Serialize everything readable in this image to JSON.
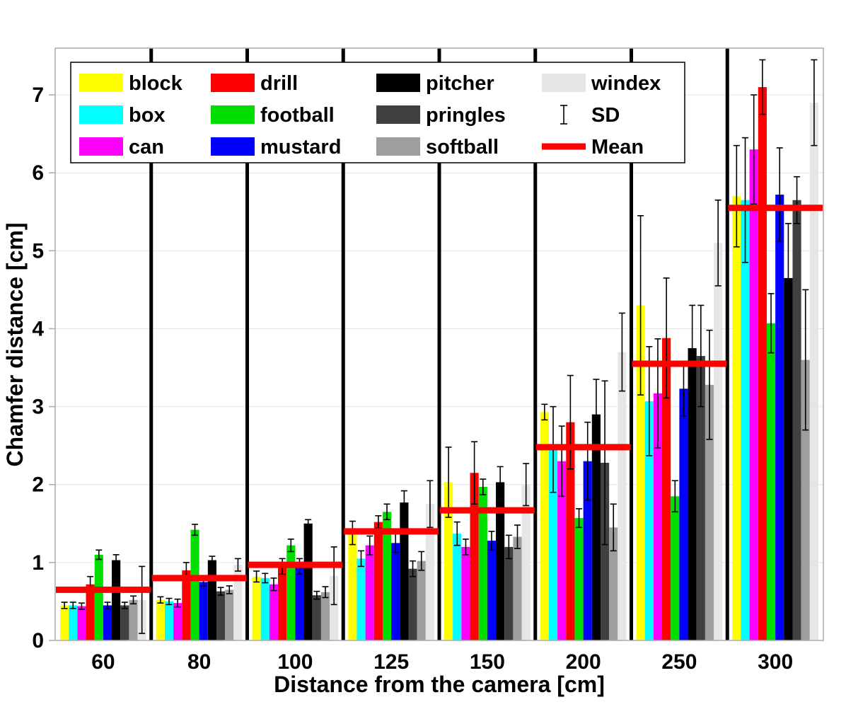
{
  "chart_data": {
    "type": "bar",
    "title": "",
    "xlabel": "Distance from the camera [cm]",
    "ylabel": "Chamfer distance [cm]",
    "categories": [
      60,
      80,
      100,
      125,
      150,
      200,
      250,
      300
    ],
    "ylim": [
      0,
      7.6
    ],
    "yticks": [
      0,
      1,
      2,
      3,
      4,
      5,
      6,
      7
    ],
    "grid": true,
    "legend_position": "top-left",
    "series": [
      {
        "name": "block",
        "color": "#FFFF00",
        "values": [
          0.45,
          0.52,
          0.82,
          1.38,
          2.03,
          2.93,
          4.3,
          5.7
        ],
        "sd": [
          0.04,
          0.04,
          0.07,
          0.15,
          0.45,
          0.1,
          1.15,
          0.65
        ]
      },
      {
        "name": "box",
        "color": "#00FFFF",
        "values": [
          0.45,
          0.5,
          0.8,
          1.05,
          1.37,
          2.45,
          3.07,
          5.65
        ],
        "sd": [
          0.04,
          0.04,
          0.06,
          0.1,
          0.15,
          0.55,
          0.7,
          0.8
        ]
      },
      {
        "name": "can",
        "color": "#FF00FF",
        "values": [
          0.44,
          0.48,
          0.72,
          1.22,
          1.2,
          2.3,
          3.17,
          6.3
        ],
        "sd": [
          0.04,
          0.05,
          0.08,
          0.12,
          0.1,
          0.45,
          0.7,
          0.7
        ]
      },
      {
        "name": "drill",
        "color": "#FF0000",
        "values": [
          0.72,
          0.9,
          0.95,
          1.52,
          2.15,
          2.8,
          3.88,
          7.1
        ],
        "sd": [
          0.1,
          0.1,
          0.1,
          0.08,
          0.4,
          0.6,
          0.77,
          0.35
        ]
      },
      {
        "name": "football",
        "color": "#00DF00",
        "values": [
          1.1,
          1.42,
          1.22,
          1.65,
          1.97,
          1.57,
          1.85,
          4.07
        ],
        "sd": [
          0.06,
          0.07,
          0.08,
          0.1,
          0.1,
          0.12,
          0.2,
          0.38
        ]
      },
      {
        "name": "mustard",
        "color": "#0000FF",
        "values": [
          0.45,
          0.75,
          0.95,
          1.25,
          1.28,
          2.3,
          3.23,
          5.72
        ],
        "sd": [
          0.04,
          0.05,
          0.1,
          0.12,
          0.12,
          0.5,
          0.35,
          0.6
        ]
      },
      {
        "name": "pitcher",
        "color": "#000000",
        "values": [
          1.03,
          1.03,
          1.5,
          1.77,
          2.03,
          2.9,
          3.75,
          4.65
        ],
        "sd": [
          0.07,
          0.05,
          0.05,
          0.15,
          0.2,
          0.45,
          0.55,
          0.7
        ]
      },
      {
        "name": "pringles",
        "color": "#404040",
        "values": [
          0.45,
          0.63,
          0.58,
          0.92,
          1.2,
          2.28,
          3.65,
          5.65
        ],
        "sd": [
          0.04,
          0.05,
          0.05,
          0.1,
          0.15,
          1.05,
          0.65,
          0.3
        ]
      },
      {
        "name": "softball",
        "color": "#9E9E9E",
        "values": [
          0.52,
          0.65,
          0.62,
          1.02,
          1.33,
          1.45,
          3.28,
          3.6
        ],
        "sd": [
          0.05,
          0.05,
          0.07,
          0.12,
          0.15,
          0.3,
          0.7,
          0.9
        ]
      },
      {
        "name": "windex",
        "color": "#E6E6E6",
        "values": [
          0.52,
          0.97,
          0.83,
          1.75,
          2.0,
          3.7,
          5.1,
          6.9
        ],
        "sd": [
          0.43,
          0.08,
          0.37,
          0.3,
          0.27,
          0.5,
          0.55,
          0.55
        ]
      }
    ],
    "mean": [
      0.65,
      0.8,
      0.97,
      1.4,
      1.67,
      2.48,
      3.55,
      5.55
    ],
    "legend": {
      "sd_label": "SD",
      "mean_label": "Mean"
    },
    "style": {
      "mean_color": "#FF0000",
      "error_color": "#000000",
      "separator_color": "#000000",
      "grid_color": "#E4E4E4",
      "box_color": "#ABABAB",
      "background": "#FFFFFF"
    }
  }
}
